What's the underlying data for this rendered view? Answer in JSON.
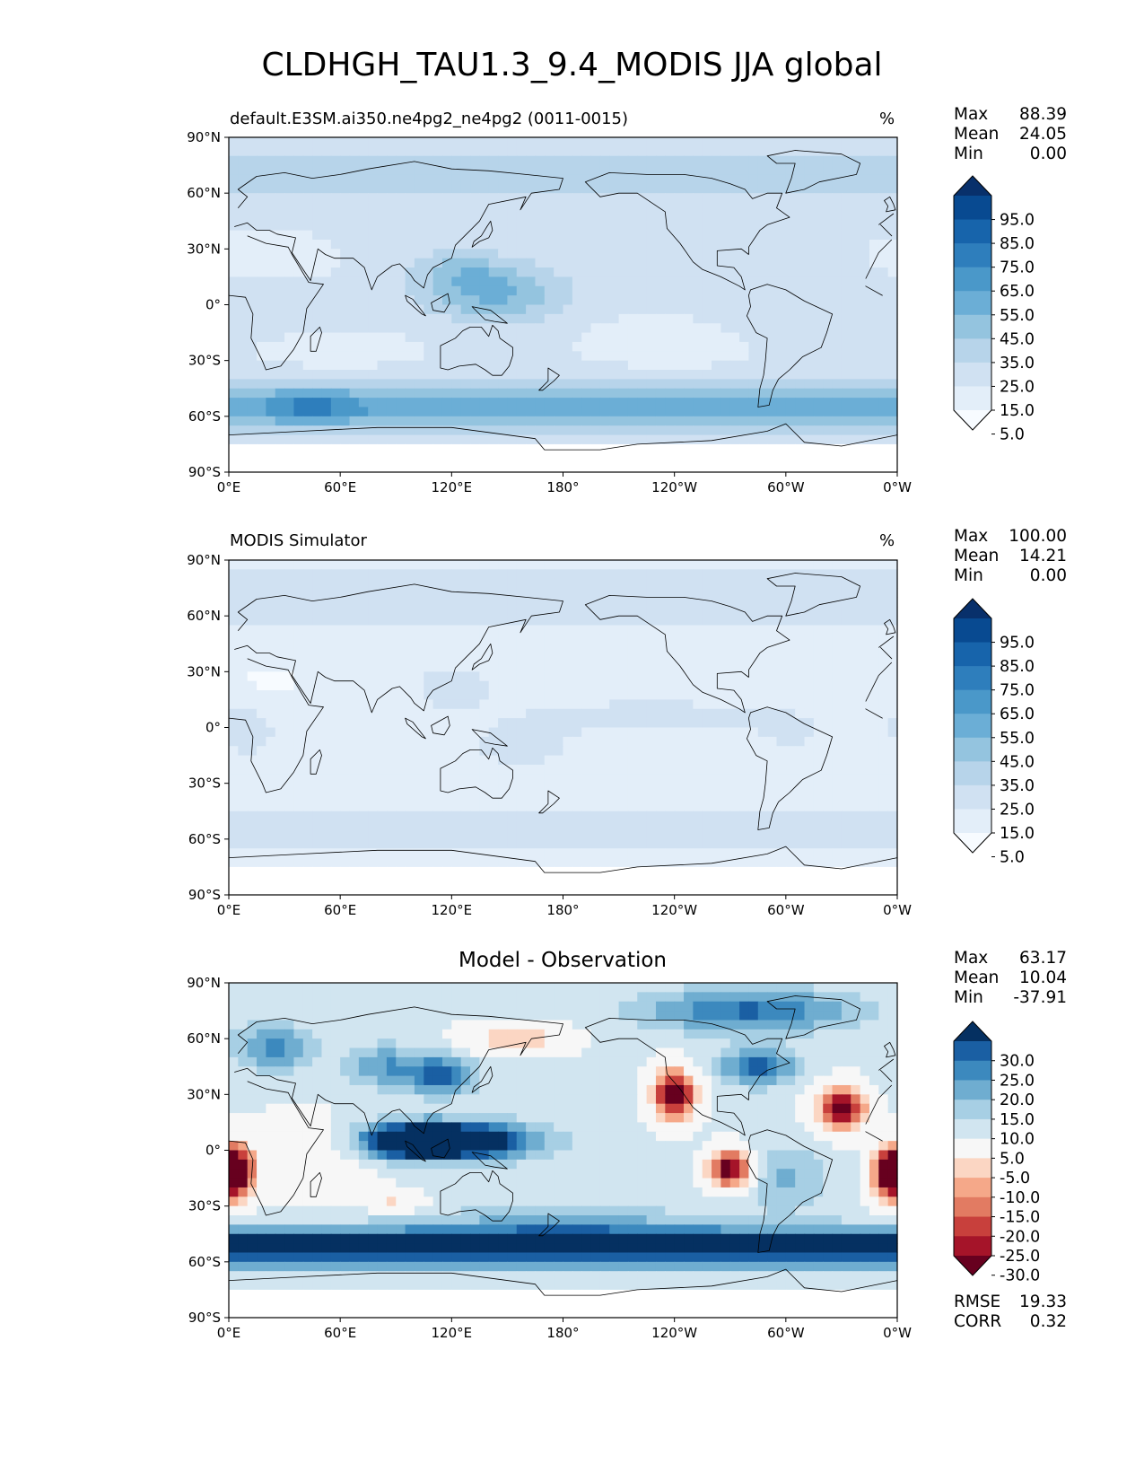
{
  "title": "CLDHGH_TAU1.3_9.4_MODIS JJA global",
  "lat_ticks": [
    "90°N",
    "60°N",
    "30°N",
    "0°",
    "30°S",
    "60°S",
    "90°S"
  ],
  "lon_ticks": [
    "0°E",
    "60°E",
    "120°E",
    "180°",
    "120°W",
    "60°W",
    "0°W"
  ],
  "panels": [
    {
      "left_title": "default.E3SM.ai350.ne4pg2_ne4pg2 (0011-0015)",
      "center_title": "",
      "units": "%",
      "stats": {
        "max_label": "Max",
        "max": "88.39",
        "mean_label": "Mean",
        "mean": "24.05",
        "min_label": "Min",
        "min": "0.00"
      },
      "colorbar_labels": [
        "95.0",
        "85.0",
        "75.0",
        "65.0",
        "55.0",
        "45.0",
        "35.0",
        "25.0",
        "15.0",
        "5.0"
      ]
    },
    {
      "left_title": "MODIS Simulator",
      "center_title": "",
      "units": "%",
      "stats": {
        "max_label": "Max",
        "max": "100.00",
        "mean_label": "Mean",
        "mean": "14.21",
        "min_label": "Min",
        "min": "0.00"
      },
      "colorbar_labels": [
        "95.0",
        "85.0",
        "75.0",
        "65.0",
        "55.0",
        "45.0",
        "35.0",
        "25.0",
        "15.0",
        "5.0"
      ]
    },
    {
      "left_title": "",
      "center_title": "Model - Observation",
      "units": "",
      "stats": {
        "max_label": "Max",
        "max": "63.17",
        "mean_label": "Mean",
        "mean": "10.04",
        "min_label": "Min",
        "min": "-37.91"
      },
      "colorbar_labels": [
        "30.0",
        "25.0",
        "20.0",
        "15.0",
        "10.0",
        "5.0",
        "-5.0",
        "-10.0",
        "-15.0",
        "-20.0",
        "-25.0",
        "-30.0"
      ],
      "rmse_label": "RMSE",
      "rmse": "19.33",
      "corr_label": "CORR",
      "corr": "0.32"
    }
  ],
  "chart_data": [
    {
      "type": "heatmap",
      "title": "default.E3SM.ai350.ne4pg2_ne4pg2 (0011-0015)",
      "units": "%",
      "colormap": "Blues",
      "levels": [
        0,
        5,
        15,
        25,
        35,
        45,
        55,
        65,
        75,
        85,
        95,
        100
      ],
      "xlim": [
        0,
        360
      ],
      "ylim": [
        -90,
        90
      ],
      "max": 88.39,
      "mean": 24.05,
      "min": 0.0
    },
    {
      "type": "heatmap",
      "title": "MODIS Simulator",
      "units": "%",
      "colormap": "Blues",
      "levels": [
        0,
        5,
        15,
        25,
        35,
        45,
        55,
        65,
        75,
        85,
        95,
        100
      ],
      "xlim": [
        0,
        360
      ],
      "ylim": [
        -90,
        90
      ],
      "max": 100.0,
      "mean": 14.21,
      "min": 0.0
    },
    {
      "type": "heatmap",
      "title": "Model - Observation",
      "colormap": "RdBu",
      "levels": [
        -30,
        -25,
        -20,
        -15,
        -10,
        -5,
        5,
        10,
        15,
        20,
        25,
        30
      ],
      "xlim": [
        0,
        360
      ],
      "ylim": [
        -90,
        90
      ],
      "max": 63.17,
      "mean": 10.04,
      "min": -37.91,
      "rmse": 19.33,
      "corr": 0.32
    }
  ]
}
